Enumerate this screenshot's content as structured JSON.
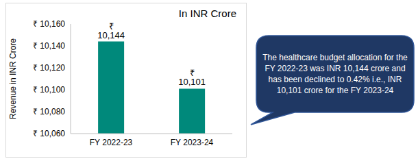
{
  "chart_data": {
    "type": "bar",
    "title": "In INR Crore",
    "ylabel": "Revenue in INR Crore",
    "categories": [
      "FY 2022-23",
      "FY 2023-24"
    ],
    "values": [
      10144,
      10101
    ],
    "value_labels": [
      "₹ 10,144",
      "₹ 10,101"
    ],
    "color": "#00897B",
    "ylim": [
      10060,
      10160
    ],
    "yticks": [
      {
        "value": 10060,
        "label": "₹ 10,060"
      },
      {
        "value": 10080,
        "label": "₹ 10,080"
      },
      {
        "value": 10100,
        "label": "₹ 10,100"
      },
      {
        "value": 10120,
        "label": "₹ 10,120"
      },
      {
        "value": 10140,
        "label": "₹ 10,140"
      },
      {
        "value": 10160,
        "label": "₹ 10,160"
      }
    ],
    "grid": false,
    "data_labels": true,
    "annotation": "The healthcare budget allocation for the FY 2022-23 was INR 10,144 crore and has been declined to 0.42% i.e., INR 10,101 crore for the FY 2023-24"
  }
}
